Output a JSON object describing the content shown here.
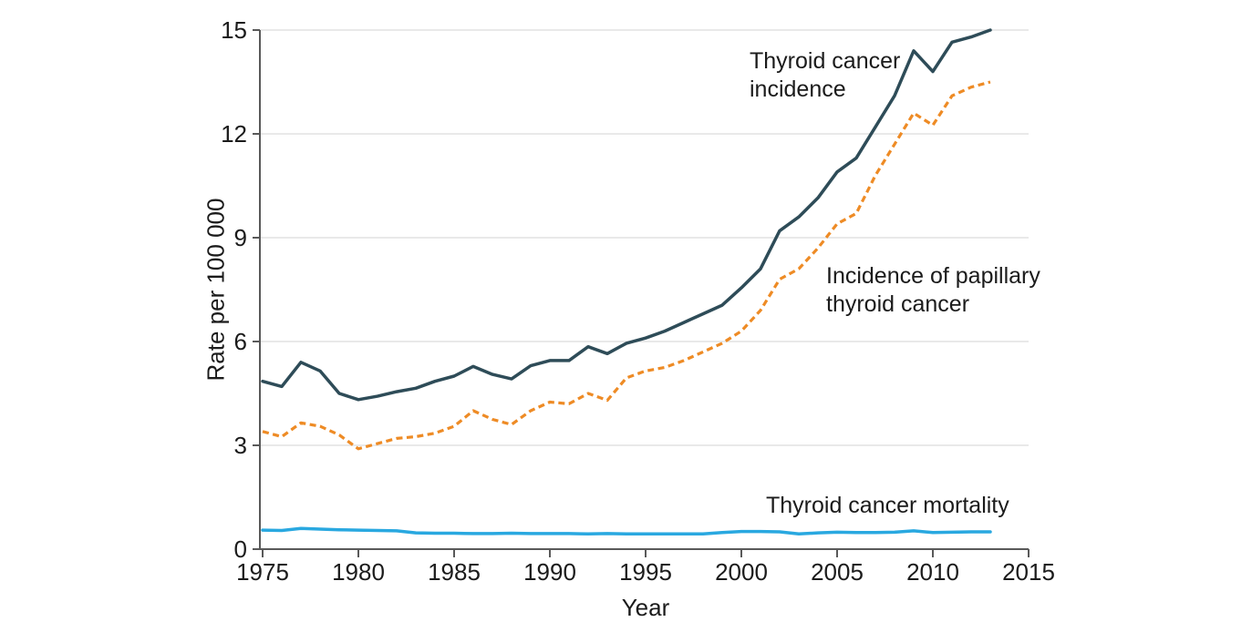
{
  "chart_data": {
    "type": "line",
    "title": "",
    "xlabel": "Year",
    "ylabel": "Rate per 100 000",
    "xlim": [
      1975,
      2015
    ],
    "ylim": [
      0,
      15
    ],
    "xticks": [
      1975,
      1980,
      1985,
      1990,
      1995,
      2000,
      2005,
      2010,
      2015
    ],
    "yticks": [
      0,
      3,
      6,
      9,
      12,
      15
    ],
    "grid": "horizontal gridlines at 3, 6, 9, 12, 15",
    "legend_position": "inline text annotations beside each line",
    "x": [
      1975,
      1976,
      1977,
      1978,
      1979,
      1980,
      1981,
      1982,
      1983,
      1984,
      1985,
      1986,
      1987,
      1988,
      1989,
      1990,
      1991,
      1992,
      1993,
      1994,
      1995,
      1996,
      1997,
      1998,
      1999,
      2000,
      2001,
      2002,
      2003,
      2004,
      2005,
      2006,
      2007,
      2008,
      2009,
      2010,
      2011,
      2012,
      2013
    ],
    "series": [
      {
        "name": "Thyroid cancer incidence",
        "color": "#2E4C58",
        "line_style": "solid",
        "values": [
          4.85,
          4.7,
          5.4,
          5.15,
          4.5,
          4.32,
          4.42,
          4.55,
          4.65,
          4.85,
          5.0,
          5.28,
          5.05,
          4.92,
          5.3,
          5.45,
          5.45,
          5.85,
          5.65,
          5.95,
          6.1,
          6.3,
          6.55,
          6.8,
          7.05,
          7.55,
          8.1,
          9.2,
          9.6,
          10.15,
          10.9,
          11.3,
          12.2,
          13.1,
          14.4,
          13.8,
          14.65,
          14.8,
          15.0
        ]
      },
      {
        "name": "Incidence of papillary thyroid cancer",
        "color": "#EE8B25",
        "line_style": "dashed",
        "values": [
          3.4,
          3.25,
          3.65,
          3.55,
          3.3,
          2.9,
          3.05,
          3.2,
          3.25,
          3.35,
          3.55,
          4.0,
          3.75,
          3.6,
          4.0,
          4.25,
          4.2,
          4.5,
          4.3,
          4.95,
          5.15,
          5.25,
          5.45,
          5.7,
          5.95,
          6.3,
          6.9,
          7.8,
          8.1,
          8.7,
          9.4,
          9.7,
          10.8,
          11.7,
          12.6,
          12.25,
          13.1,
          13.35,
          13.5
        ]
      },
      {
        "name": "Thyroid cancer mortality",
        "color": "#29A8E0",
        "line_style": "solid",
        "values": [
          0.55,
          0.54,
          0.6,
          0.58,
          0.56,
          0.55,
          0.54,
          0.53,
          0.47,
          0.46,
          0.46,
          0.45,
          0.45,
          0.46,
          0.45,
          0.45,
          0.45,
          0.44,
          0.45,
          0.44,
          0.44,
          0.44,
          0.44,
          0.44,
          0.48,
          0.51,
          0.51,
          0.5,
          0.44,
          0.47,
          0.49,
          0.48,
          0.48,
          0.49,
          0.53,
          0.48,
          0.49,
          0.5,
          0.5
        ]
      }
    ],
    "colors": {
      "grid": "#E2E2E2",
      "axis": "#595959",
      "text": "#1B1B1B",
      "background": "#FFFFFF"
    }
  }
}
